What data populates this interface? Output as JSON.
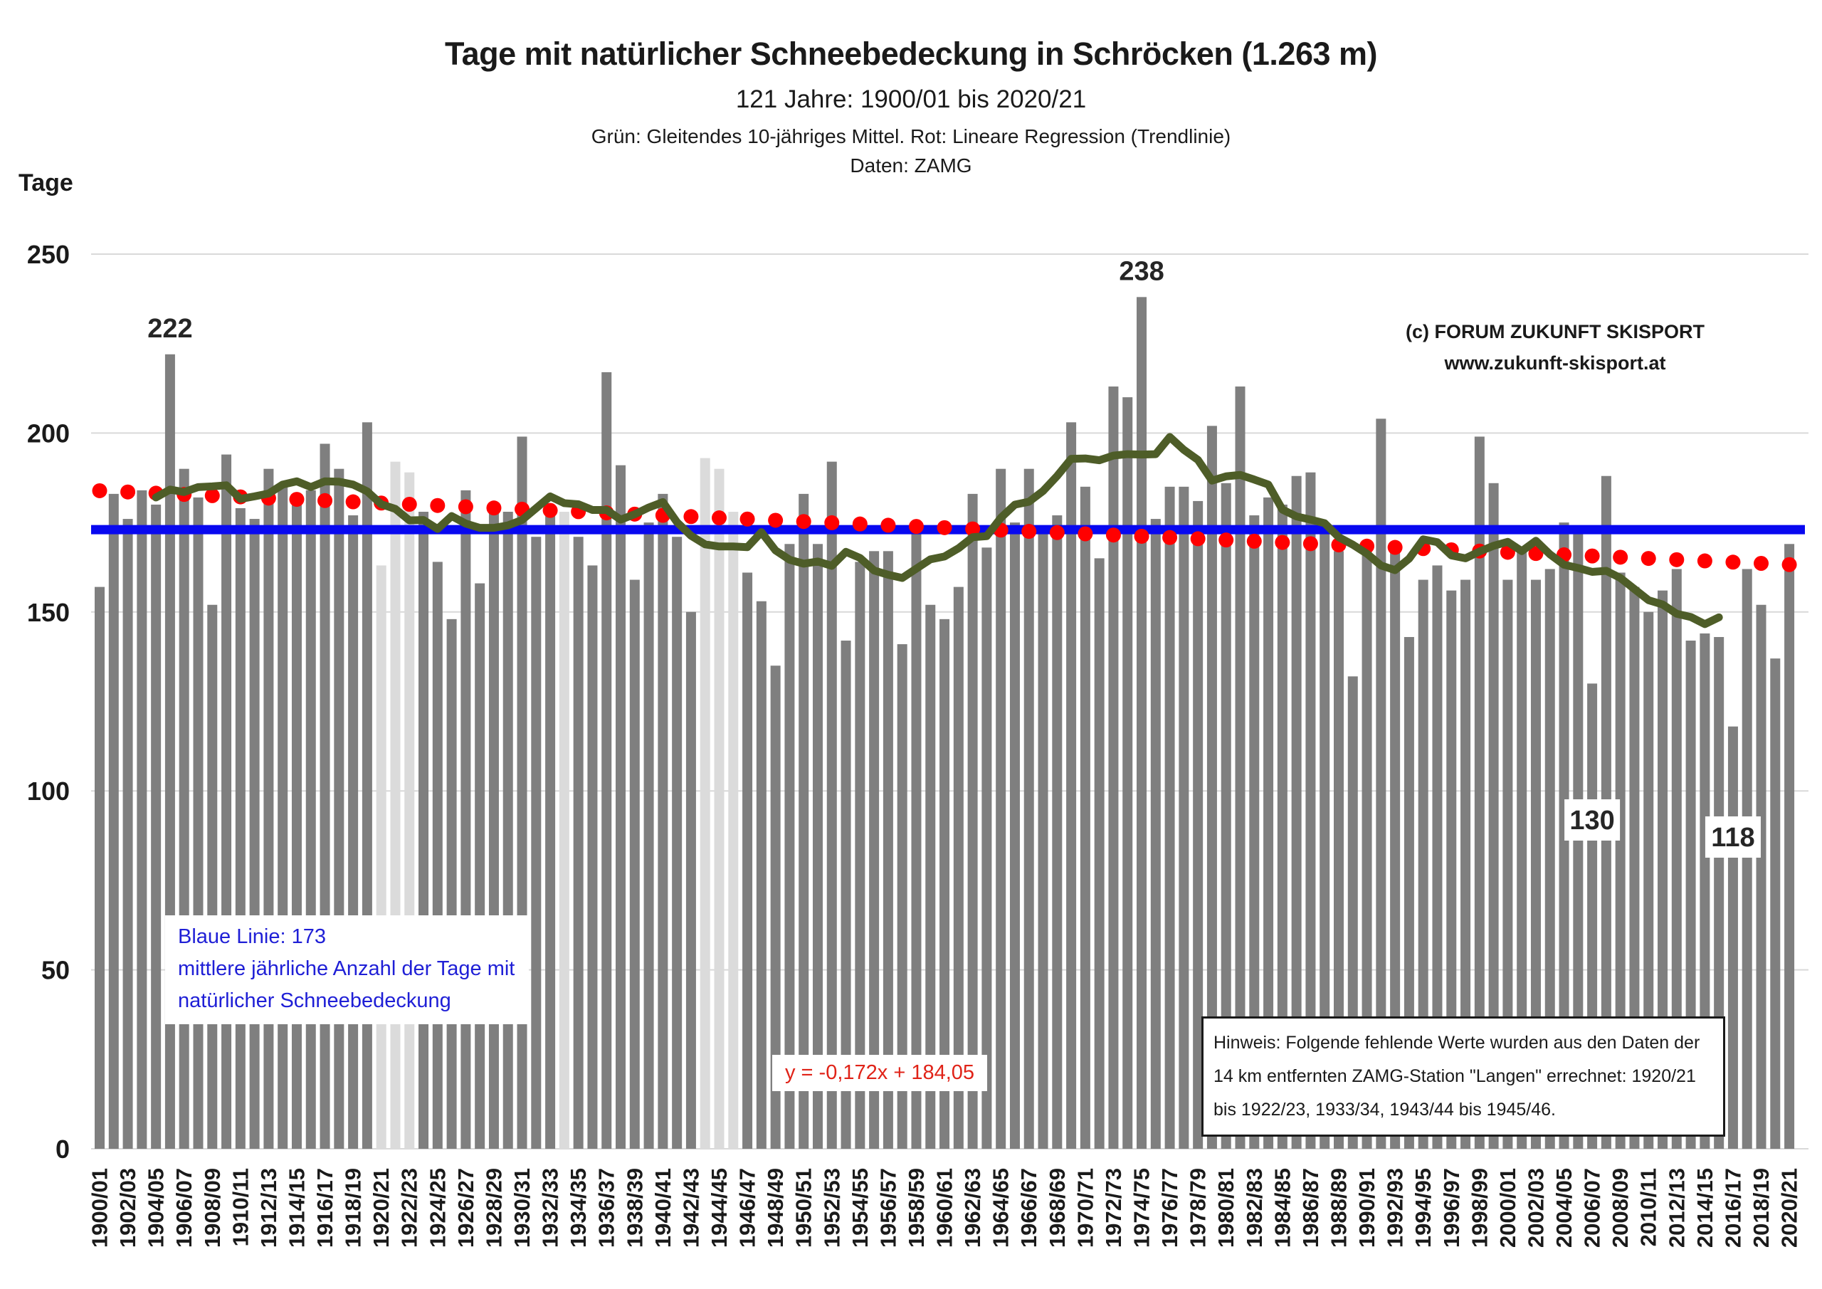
{
  "chart_data": {
    "type": "bar",
    "title": "Tage mit natürlicher Schneebedeckung in Schröcken (1.263 m)",
    "subtitle": "121 Jahre: 1900/01 bis 2020/21",
    "legend_note": "Grün: Gleitendes 10-jähriges Mittel. Rot: Lineare Regression (Trendlinie)",
    "source_note": "Daten: ZAMG",
    "ylabel": "Tage",
    "ylim": [
      0,
      250
    ],
    "yticks": [
      0,
      50,
      100,
      150,
      200,
      250
    ],
    "x_tick_interval": 2,
    "grid": true,
    "categories": [
      "1900/01",
      "1901/02",
      "1902/03",
      "1903/04",
      "1904/05",
      "1905/06",
      "1906/07",
      "1907/08",
      "1908/09",
      "1909/10",
      "1910/11",
      "1911/12",
      "1912/13",
      "1913/14",
      "1914/15",
      "1915/16",
      "1916/17",
      "1917/18",
      "1918/19",
      "1919/20",
      "1920/21",
      "1921/22",
      "1922/23",
      "1923/24",
      "1924/25",
      "1925/26",
      "1926/27",
      "1927/28",
      "1928/29",
      "1929/30",
      "1930/31",
      "1931/32",
      "1932/33",
      "1933/34",
      "1934/35",
      "1935/36",
      "1936/37",
      "1937/38",
      "1938/39",
      "1939/40",
      "1940/41",
      "1941/42",
      "1942/43",
      "1943/44",
      "1944/45",
      "1945/46",
      "1946/47",
      "1947/48",
      "1948/49",
      "1949/50",
      "1950/51",
      "1951/52",
      "1952/53",
      "1953/54",
      "1954/55",
      "1955/56",
      "1956/57",
      "1957/58",
      "1958/59",
      "1959/60",
      "1960/61",
      "1961/62",
      "1962/63",
      "1963/64",
      "1964/65",
      "1965/66",
      "1966/67",
      "1967/68",
      "1968/69",
      "1969/70",
      "1970/71",
      "1971/72",
      "1972/73",
      "1973/74",
      "1974/75",
      "1975/76",
      "1976/77",
      "1977/78",
      "1978/79",
      "1979/80",
      "1980/81",
      "1981/82",
      "1982/83",
      "1983/84",
      "1984/85",
      "1985/86",
      "1986/87",
      "1987/88",
      "1988/89",
      "1989/90",
      "1990/91",
      "1991/92",
      "1992/93",
      "1993/94",
      "1994/95",
      "1995/96",
      "1996/97",
      "1997/98",
      "1998/99",
      "1999/00",
      "2000/01",
      "2001/02",
      "2002/03",
      "2003/04",
      "2004/05",
      "2005/06",
      "2006/07",
      "2007/08",
      "2008/09",
      "2009/10",
      "2010/11",
      "2011/12",
      "2012/13",
      "2013/14",
      "2014/15",
      "2015/16",
      "2016/17",
      "2017/18",
      "2018/19",
      "2019/20",
      "2020/21"
    ],
    "values": [
      157,
      183,
      176,
      184,
      180,
      222,
      190,
      182,
      152,
      194,
      179,
      176,
      190,
      186,
      183,
      184,
      197,
      190,
      177,
      203,
      163,
      192,
      189,
      178,
      164,
      148,
      184,
      158,
      178,
      178,
      199,
      171,
      177,
      178,
      171,
      163,
      217,
      191,
      159,
      175,
      183,
      171,
      150,
      193,
      190,
      178,
      161,
      153,
      135,
      169,
      183,
      169,
      192,
      142,
      164,
      167,
      167,
      141,
      174,
      152,
      148,
      157,
      183,
      168,
      190,
      175,
      190,
      172,
      177,
      203,
      185,
      165,
      213,
      210,
      238,
      176,
      185,
      185,
      181,
      202,
      186,
      213,
      177,
      182,
      180,
      188,
      189,
      172,
      167,
      132,
      167,
      204,
      167,
      143,
      159,
      163,
      156,
      159,
      199,
      186,
      159,
      167,
      159,
      162,
      175,
      174,
      130,
      188,
      161,
      157,
      150,
      156,
      162,
      142,
      144,
      143,
      118,
      162,
      152,
      137,
      169
    ],
    "estimated_years": [
      "1920/21",
      "1921/22",
      "1922/23",
      "1933/34",
      "1943/44",
      "1944/45",
      "1945/46"
    ],
    "mean_line": {
      "value": 173
    },
    "regression": {
      "slope": -0.172,
      "intercept": 184.05
    },
    "moving_average": {
      "window": 10,
      "centered": true
    },
    "annotations": [
      {
        "category": "1905/06",
        "text": "222",
        "boxed": false
      },
      {
        "category": "1974/75",
        "text": "238",
        "boxed": false
      },
      {
        "category": "2006/07",
        "text": "130",
        "boxed": true
      },
      {
        "category": "2016/17",
        "text": "118",
        "boxed": true
      }
    ],
    "colors": {
      "bar": "#7F7F7F",
      "bar_estimated": "#DBDBDB",
      "moving_average": "#4E5D28",
      "regression": "#FF0000",
      "mean_line": "#0808F0",
      "grid": "#D9D9D9"
    }
  },
  "copyright": {
    "line1": "(c) FORUM ZUKUNFT SKISPORT",
    "line2": "www.zukunft-skisport.at"
  },
  "blue_note": {
    "line1": "Blaue Linie: 173",
    "line2": "mittlere jährliche Anzahl der Tage mit",
    "line3": "natürlicher Schneebedeckung"
  },
  "regression_label": "y = -0,172x + 184,05",
  "hinweis_text": "Hinweis: Folgende fehlende Werte wurden aus den Daten der 14 km entfernten ZAMG-Station \"Langen\" errechnet:  1920/21 bis 1922/23, 1933/34, 1943/44 bis 1945/46."
}
